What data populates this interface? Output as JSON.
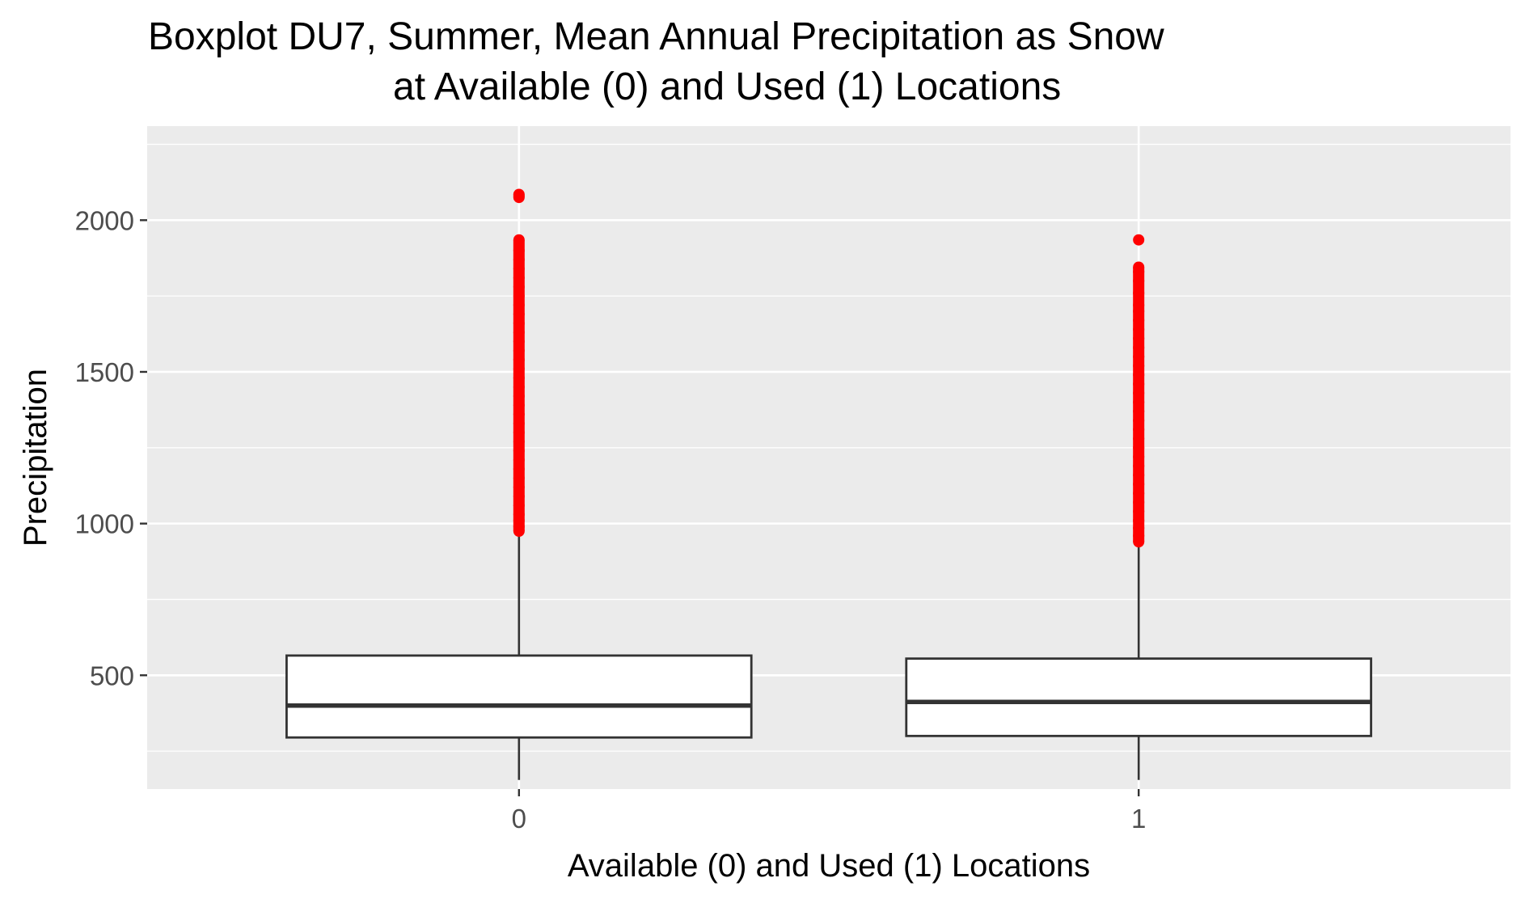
{
  "chart_data": {
    "type": "boxplot",
    "title_lines": [
      "Boxplot DU7, Summer, Mean Annual Precipitation as Snow",
      "at Available (0) and Used (1) Locations"
    ],
    "xlabel": "Available (0) and Used (1) Locations",
    "ylabel": "Precipitation",
    "categories": [
      "0",
      "1"
    ],
    "ylim": [
      125,
      2310
    ],
    "y_ticks": [
      500,
      1000,
      1500,
      2000
    ],
    "grid": true,
    "boxes": [
      {
        "category": "0",
        "whisker_low": 155,
        "q1": 295,
        "median": 400,
        "q3": 565,
        "whisker_high": 975,
        "outliers": [
          975,
          990,
          1010,
          1030,
          1060,
          1090,
          1120,
          1150,
          1180,
          1210,
          1240,
          1270,
          1300,
          1330,
          1360,
          1390,
          1420,
          1450,
          1480,
          1510,
          1540,
          1570,
          1600,
          1630,
          1660,
          1690,
          1720,
          1750,
          1780,
          1810,
          1840,
          1870,
          1900,
          1935,
          2075,
          2085
        ]
      },
      {
        "category": "1",
        "whisker_low": 155,
        "q1": 300,
        "median": 412,
        "q3": 555,
        "whisker_high": 935,
        "outliers": [
          940,
          960,
          985,
          1010,
          1040,
          1070,
          1100,
          1130,
          1160,
          1190,
          1220,
          1250,
          1280,
          1310,
          1340,
          1370,
          1400,
          1430,
          1460,
          1490,
          1520,
          1550,
          1580,
          1610,
          1640,
          1670,
          1700,
          1720,
          1760,
          1800,
          1830,
          1845,
          1935
        ]
      }
    ],
    "colors": {
      "panel_background": "#ebebeb",
      "grid": "#ffffff",
      "box_fill": "#ffffff",
      "box_stroke": "#333333",
      "outlier": "#ff0000",
      "tick_text": "#4d4d4d"
    }
  }
}
